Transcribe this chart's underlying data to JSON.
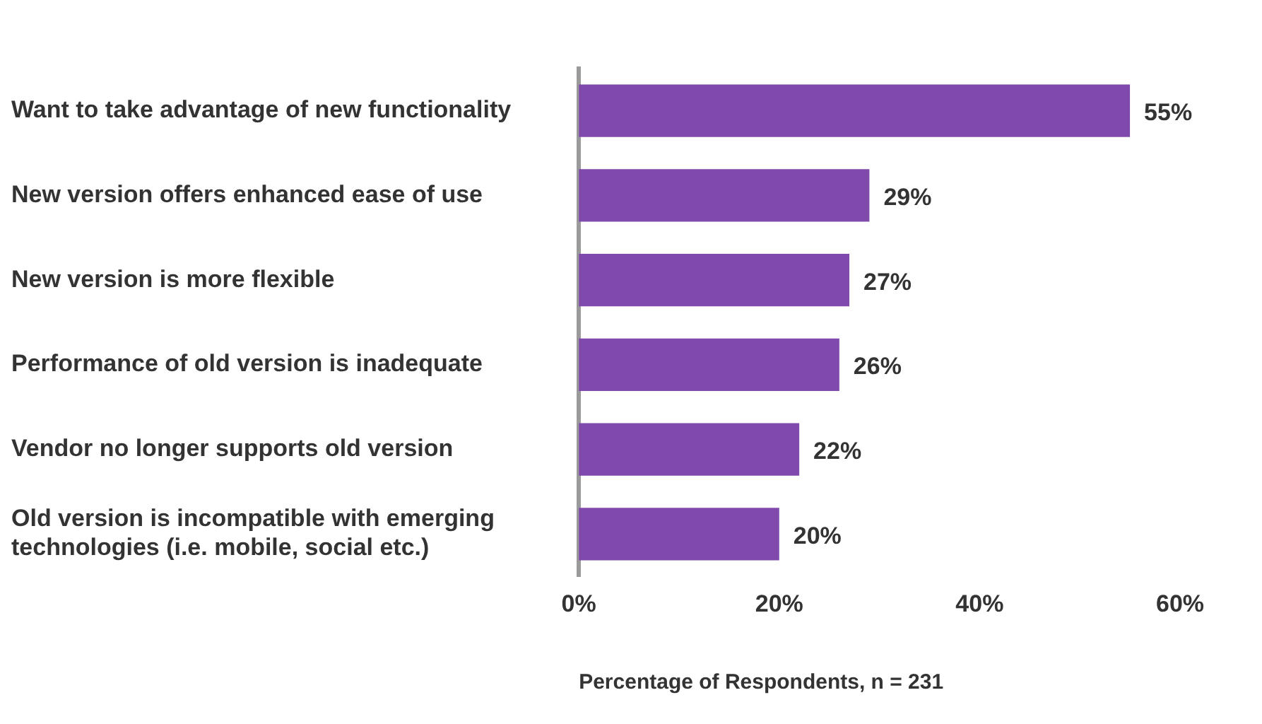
{
  "chart_data": {
    "type": "bar",
    "orientation": "horizontal",
    "xlabel": "Percentage of Respondents, n = 231",
    "categories": [
      "Want to take advantage of new functionality",
      "New version offers enhanced ease of use",
      "New version is more flexible",
      "Performance of old version is inadequate",
      "Vendor no longer supports old version",
      "Old version is incompatible with emerging technologies (i.e. mobile, social etc.)"
    ],
    "values": [
      55,
      29,
      27,
      26,
      22,
      20
    ],
    "value_labels": [
      "55%",
      "29%",
      "27%",
      "26%",
      "22%",
      "20%"
    ],
    "color": "#7f4aab",
    "xlim": [
      0,
      60
    ],
    "xticks": [
      {
        "value": 0,
        "label": "0%"
      },
      {
        "value": 20,
        "label": "20%"
      },
      {
        "value": 40,
        "label": "40%"
      },
      {
        "value": 60,
        "label": "60%"
      }
    ],
    "grid": false,
    "legend": false
  }
}
